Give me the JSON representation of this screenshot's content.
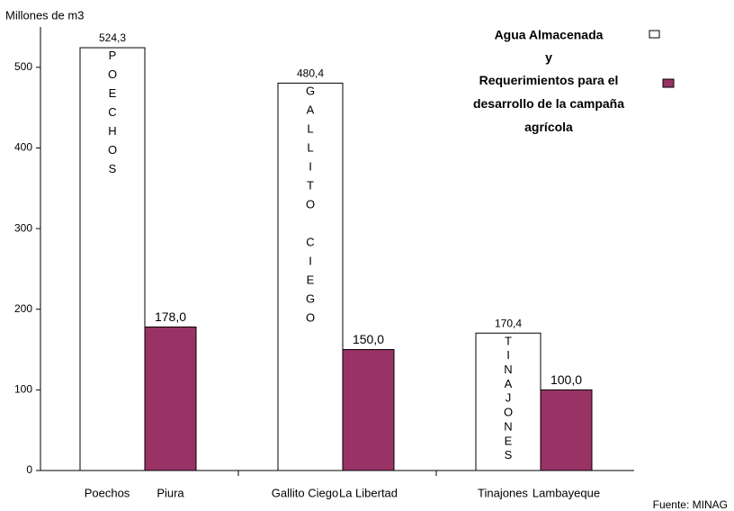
{
  "chart_data": {
    "type": "bar",
    "y_axis_label": "Millones de m3",
    "legend_joiner": "y",
    "source": "Fuente: MINAG",
    "series": [
      {
        "name": "Agua Almacenada",
        "color": "#ffffff",
        "labels": [
          "Poechos",
          "Gallito Ciego",
          "Tinajones"
        ],
        "inner_labels": [
          "POECHOS",
          "GALLITO CIEGO",
          "TINAJONES"
        ],
        "values": [
          524.3,
          480.4,
          170.4
        ],
        "value_labels": [
          "524,3",
          "480,4",
          "170,4"
        ]
      },
      {
        "name": "Requerimientos para el desarrollo de la campaña agrícola",
        "color": "#993366",
        "labels": [
          "Piura",
          "La Libertad",
          "Lambayeque"
        ],
        "values": [
          178,
          150,
          100
        ],
        "value_labels": [
          "178,0",
          "150,0",
          "100,0"
        ]
      }
    ],
    "ylim": [
      0,
      550
    ],
    "yticks": [
      0,
      100,
      200,
      300,
      400,
      500
    ]
  }
}
